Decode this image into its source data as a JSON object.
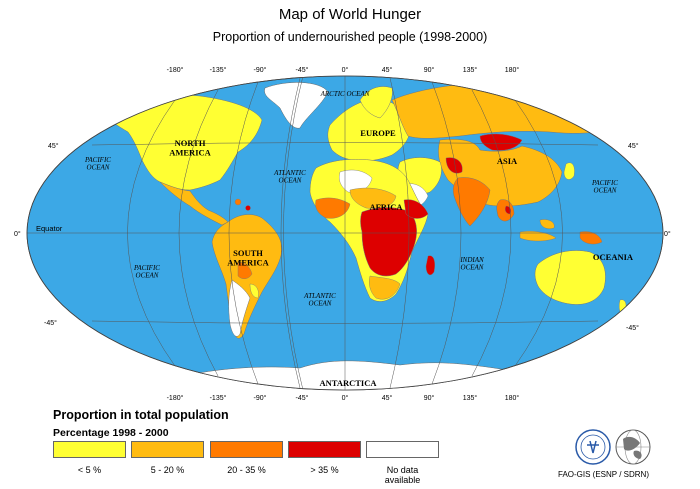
{
  "title": "Map of World Hunger",
  "subtitle": "Proportion of undernourished people (1998-2000)",
  "longitude_labels": [
    "-180°",
    "-135°",
    "-90°",
    "-45°",
    "0°",
    "45°",
    "90°",
    "135°",
    "180°"
  ],
  "latitude_labels": {
    "north45": "45°",
    "equator": "0°",
    "south45": "-45°"
  },
  "equator_label": "Equator",
  "regions": {
    "north_america": "NORTH\nAMERICA",
    "south_america": "SOUTH\nAMERICA",
    "europe": "EUROPE",
    "africa": "AFRICA",
    "asia": "ASIA",
    "oceania": "OCEANIA",
    "antarctica": "ANTARCTICA"
  },
  "oceans": {
    "arctic": "ARCTIC OCEAN",
    "pacific_ne": "PACIFIC\nOCEAN",
    "pacific_nw": "PACIFIC\nOCEAN",
    "atlantic_n": "ATLANTIC\nOCEAN",
    "pacific_s": "PACIFIC\nOCEAN",
    "atlantic_s": "ATLANTIC\nOCEAN",
    "indian": "INDIAN\nOCEAN"
  },
  "legend": {
    "title": "Proportion in total population",
    "subtitle": "Percentage 1998 - 2000",
    "items": [
      {
        "label": "< 5 %",
        "color": "#ffff33"
      },
      {
        "label": "5 - 20 %",
        "color": "#ffbb11"
      },
      {
        "label": "20 - 35 %",
        "color": "#ff7a00"
      },
      {
        "label": "> 35 %",
        "color": "#dd0000"
      },
      {
        "label": "No data\navailable",
        "color": "#ffffff"
      }
    ]
  },
  "credit": "FAO-GIS (ESNP / SDRN)",
  "colors": {
    "ocean": "#3ca8e6",
    "lt5": "#ffff33",
    "p5_20": "#ffbb11",
    "p20_35": "#ff7a00",
    "gt35": "#dd0000",
    "nodata": "#ffffff"
  }
}
